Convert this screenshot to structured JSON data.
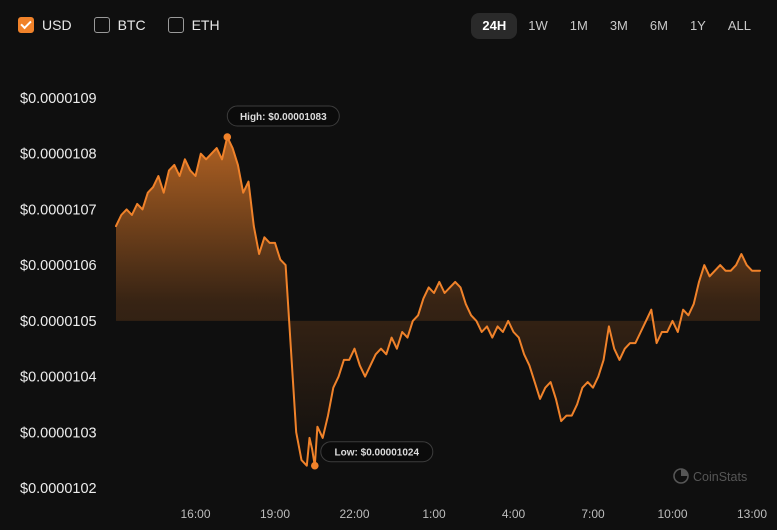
{
  "currency_toggles": [
    {
      "label": "USD",
      "checked": true
    },
    {
      "label": "BTC",
      "checked": false
    },
    {
      "label": "ETH",
      "checked": false
    }
  ],
  "time_ranges": [
    {
      "label": "24H",
      "active": true
    },
    {
      "label": "1W",
      "active": false
    },
    {
      "label": "1M",
      "active": false
    },
    {
      "label": "3M",
      "active": false
    },
    {
      "label": "6M",
      "active": false
    },
    {
      "label": "1Y",
      "active": false
    },
    {
      "label": "ALL",
      "active": false
    }
  ],
  "watermark": "CoinStats",
  "colors": {
    "line": "#f0822a",
    "accent": "#f0822a",
    "background": "#0f0f0f"
  },
  "chart_data": {
    "type": "area",
    "ytick_labels": [
      "$0.0000109",
      "$0.0000108",
      "$0.0000107",
      "$0.0000106",
      "$0.0000105",
      "$0.0000104",
      "$0.0000103",
      "$0.0000102"
    ],
    "ytick_values": [
      1.09e-05,
      1.08e-05,
      1.07e-05,
      1.06e-05,
      1.05e-05,
      1.04e-05,
      1.03e-05,
      1.02e-05
    ],
    "xtick_labels": [
      "16:00",
      "19:00",
      "22:00",
      "1:00",
      "4:00",
      "7:00",
      "10:00",
      "13:00"
    ],
    "xtick_hours": [
      3.0,
      6.0,
      9.0,
      12.0,
      15.0,
      18.0,
      21.0,
      24.0
    ],
    "ylim": [
      1.02e-05,
      1.09e-05
    ],
    "xlim": [
      0,
      24.3
    ],
    "grid": false,
    "annotations": [
      {
        "text": "High: $0.00001083",
        "x": 4.2,
        "y": 1.083e-05,
        "position": "above"
      },
      {
        "text": "Low: $0.00001024",
        "x": 7.5,
        "y": 1.024e-05,
        "position": "right"
      }
    ],
    "series": [
      {
        "x": [
          0.0,
          0.2,
          0.4,
          0.6,
          0.8,
          1.0,
          1.2,
          1.4,
          1.6,
          1.8,
          2.0,
          2.2,
          2.4,
          2.6,
          2.8,
          3.0,
          3.2,
          3.4,
          3.6,
          3.8,
          4.0,
          4.2,
          4.4,
          4.6,
          4.8,
          5.0,
          5.2,
          5.4,
          5.6,
          5.8,
          6.0,
          6.2,
          6.4,
          6.6,
          6.8,
          7.0,
          7.2,
          7.3,
          7.4,
          7.5,
          7.6,
          7.8,
          8.0,
          8.2,
          8.4,
          8.6,
          8.8,
          9.0,
          9.2,
          9.4,
          9.6,
          9.8,
          10.0,
          10.2,
          10.4,
          10.6,
          10.8,
          11.0,
          11.2,
          11.4,
          11.6,
          11.8,
          12.0,
          12.2,
          12.4,
          12.6,
          12.8,
          13.0,
          13.2,
          13.4,
          13.6,
          13.8,
          14.0,
          14.2,
          14.4,
          14.6,
          14.8,
          15.0,
          15.2,
          15.4,
          15.6,
          15.8,
          16.0,
          16.2,
          16.4,
          16.6,
          16.8,
          17.0,
          17.2,
          17.4,
          17.6,
          17.8,
          18.0,
          18.2,
          18.4,
          18.6,
          18.8,
          19.0,
          19.2,
          19.4,
          19.6,
          19.8,
          20.0,
          20.2,
          20.4,
          20.6,
          20.8,
          21.0,
          21.2,
          21.4,
          21.6,
          21.8,
          22.0,
          22.2,
          22.4,
          22.6,
          22.8,
          23.0,
          23.2,
          23.4,
          23.6,
          23.8,
          24.0,
          24.2,
          24.3
        ],
        "values": [
          1.067e-05,
          1.069e-05,
          1.07e-05,
          1.069e-05,
          1.071e-05,
          1.07e-05,
          1.073e-05,
          1.074e-05,
          1.076e-05,
          1.073e-05,
          1.077e-05,
          1.078e-05,
          1.076e-05,
          1.079e-05,
          1.077e-05,
          1.076e-05,
          1.08e-05,
          1.079e-05,
          1.08e-05,
          1.081e-05,
          1.079e-05,
          1.083e-05,
          1.081e-05,
          1.078e-05,
          1.073e-05,
          1.075e-05,
          1.067e-05,
          1.062e-05,
          1.065e-05,
          1.064e-05,
          1.064e-05,
          1.061e-05,
          1.06e-05,
          1.045e-05,
          1.03e-05,
          1.025e-05,
          1.024e-05,
          1.029e-05,
          1.027e-05,
          1.024e-05,
          1.031e-05,
          1.029e-05,
          1.033e-05,
          1.038e-05,
          1.04e-05,
          1.043e-05,
          1.043e-05,
          1.045e-05,
          1.042e-05,
          1.04e-05,
          1.042e-05,
          1.044e-05,
          1.045e-05,
          1.044e-05,
          1.047e-05,
          1.045e-05,
          1.048e-05,
          1.047e-05,
          1.05e-05,
          1.051e-05,
          1.054e-05,
          1.056e-05,
          1.055e-05,
          1.057e-05,
          1.055e-05,
          1.056e-05,
          1.057e-05,
          1.056e-05,
          1.053e-05,
          1.051e-05,
          1.05e-05,
          1.048e-05,
          1.049e-05,
          1.047e-05,
          1.049e-05,
          1.048e-05,
          1.05e-05,
          1.048e-05,
          1.047e-05,
          1.044e-05,
          1.042e-05,
          1.039e-05,
          1.036e-05,
          1.038e-05,
          1.039e-05,
          1.036e-05,
          1.032e-05,
          1.033e-05,
          1.033e-05,
          1.035e-05,
          1.038e-05,
          1.039e-05,
          1.038e-05,
          1.04e-05,
          1.043e-05,
          1.049e-05,
          1.045e-05,
          1.043e-05,
          1.045e-05,
          1.046e-05,
          1.046e-05,
          1.048e-05,
          1.05e-05,
          1.052e-05,
          1.046e-05,
          1.048e-05,
          1.048e-05,
          1.05e-05,
          1.048e-05,
          1.052e-05,
          1.051e-05,
          1.053e-05,
          1.057e-05,
          1.06e-05,
          1.058e-05,
          1.059e-05,
          1.06e-05,
          1.059e-05,
          1.059e-05,
          1.06e-05,
          1.062e-05,
          1.06e-05,
          1.059e-05,
          1.059e-05,
          1.059e-05
        ]
      }
    ]
  }
}
